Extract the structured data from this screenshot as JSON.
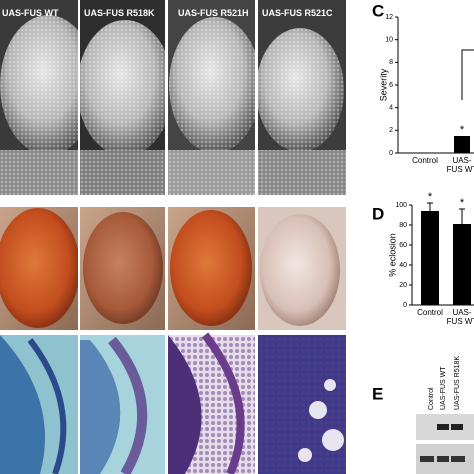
{
  "figure": {
    "column_titles": [
      "UAS-FUS WT",
      "UAS-FUS R518K",
      "UAS-FUS R521H",
      "UAS-FUS R521C"
    ]
  },
  "chart_data": [
    {
      "type": "bar",
      "panel_label": "C",
      "y_label": "Severity",
      "categories": [
        "Control",
        "UAS-FUS WT"
      ],
      "values": [
        0,
        1.5
      ],
      "annotations": [
        "*"
      ],
      "color": "#000000",
      "ylim": [
        0,
        12
      ],
      "yticks": [
        0,
        2,
        4,
        6,
        8,
        10,
        12
      ]
    },
    {
      "type": "bar",
      "panel_label": "D",
      "y_label": "% eclosion",
      "categories": [
        "Control",
        "UAS-FUS WT"
      ],
      "values": [
        94,
        81
      ],
      "errors": [
        8,
        15
      ],
      "annotations": [
        "*",
        "*"
      ],
      "color": "#000000",
      "ylim": [
        0,
        100
      ],
      "yticks": [
        0,
        20,
        40,
        60,
        80,
        100
      ]
    }
  ],
  "blot": {
    "panel_label": "E",
    "lanes": [
      "Control",
      "UAS-FUS WT",
      "UAS-FUS R518K"
    ]
  }
}
